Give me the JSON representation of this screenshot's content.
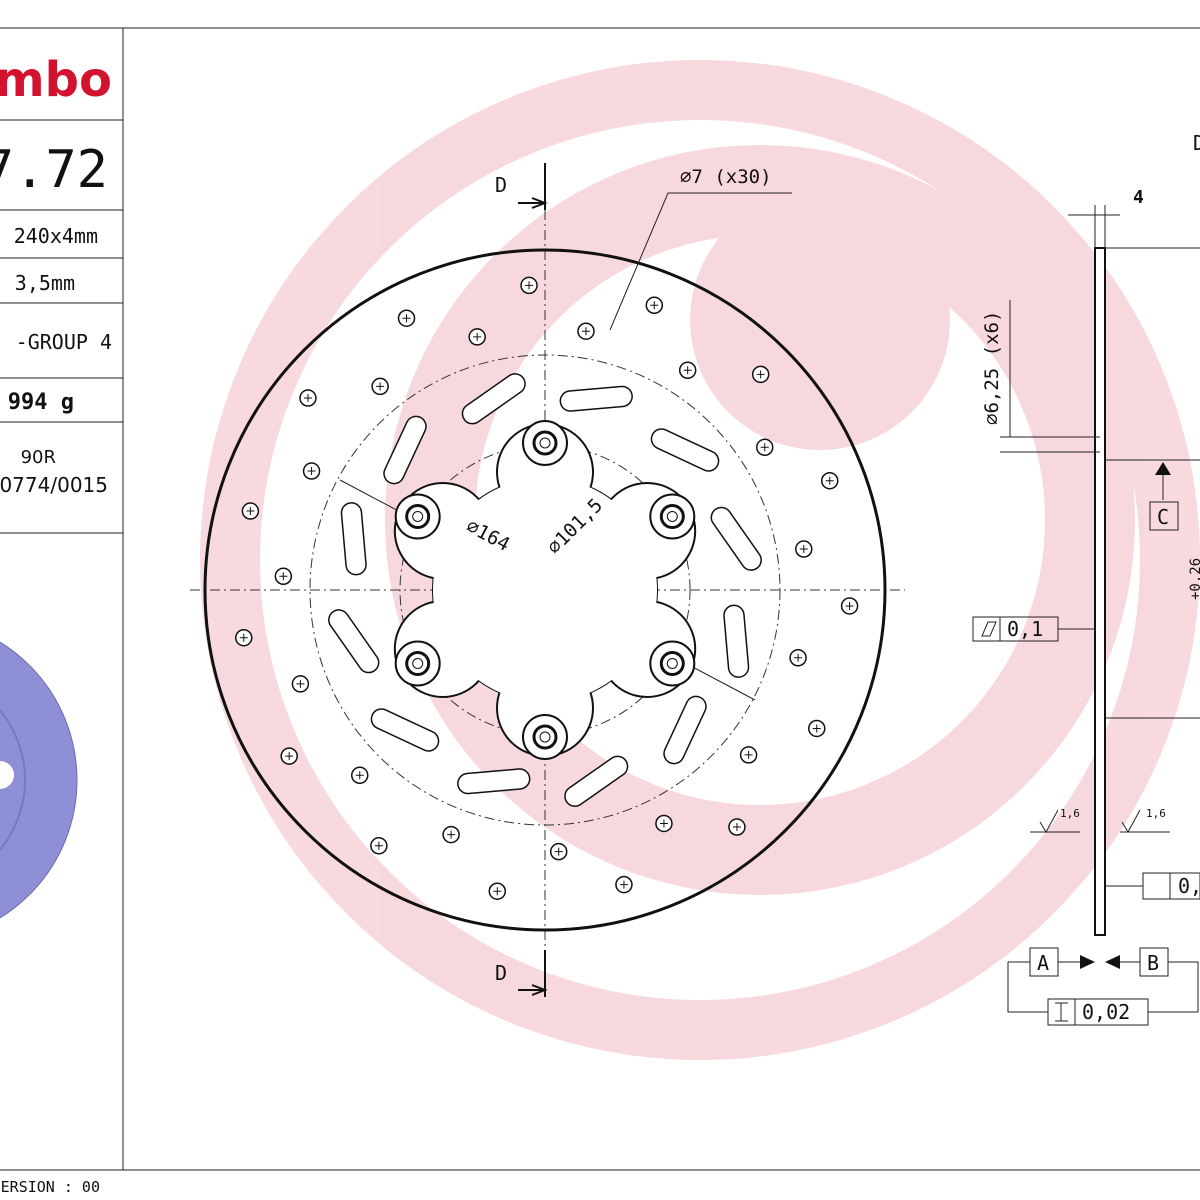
{
  "logo": "mbo",
  "part_number": "7.72",
  "specs": [
    "240x4mm",
    "3,5mm",
    "-GROUP 4",
    "994 g"
  ],
  "approval": [
    "90R",
    "0774/0015"
  ],
  "version": "ERSION : 00",
  "drawing": {
    "section_top": "D",
    "section_bottom": "D",
    "hole_dim": "⌀7 (x30)",
    "dia_outer": "⌀164",
    "dia_inner": "⌀101,5"
  },
  "side_view": {
    "section": "D",
    "thickness": "4",
    "mount_hole": "⌀6,25 (x6)",
    "datum_c": "C",
    "flatness": "0,1",
    "roughness": [
      "1,6",
      "1,6"
    ],
    "runout": "0,",
    "datum_a": "A",
    "datum_b": "B",
    "parallelism": "0,02",
    "tolerance": "+0,26"
  }
}
